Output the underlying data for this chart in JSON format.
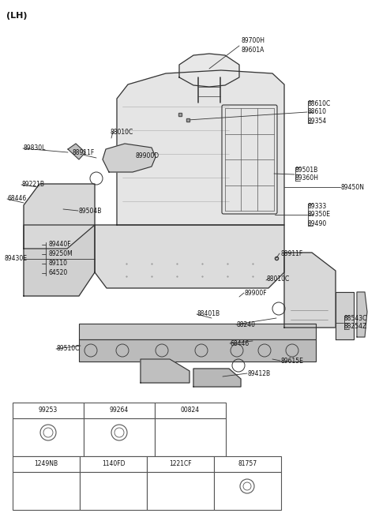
{
  "bg_color": "#ffffff",
  "line_color": "#333333",
  "text_color": "#111111",
  "title": "(LH)",
  "top_table_codes": [
    "99253",
    "99264",
    "00824"
  ],
  "bot_table_codes": [
    "1249NB",
    "1140FD",
    "1221CF",
    "81757"
  ]
}
